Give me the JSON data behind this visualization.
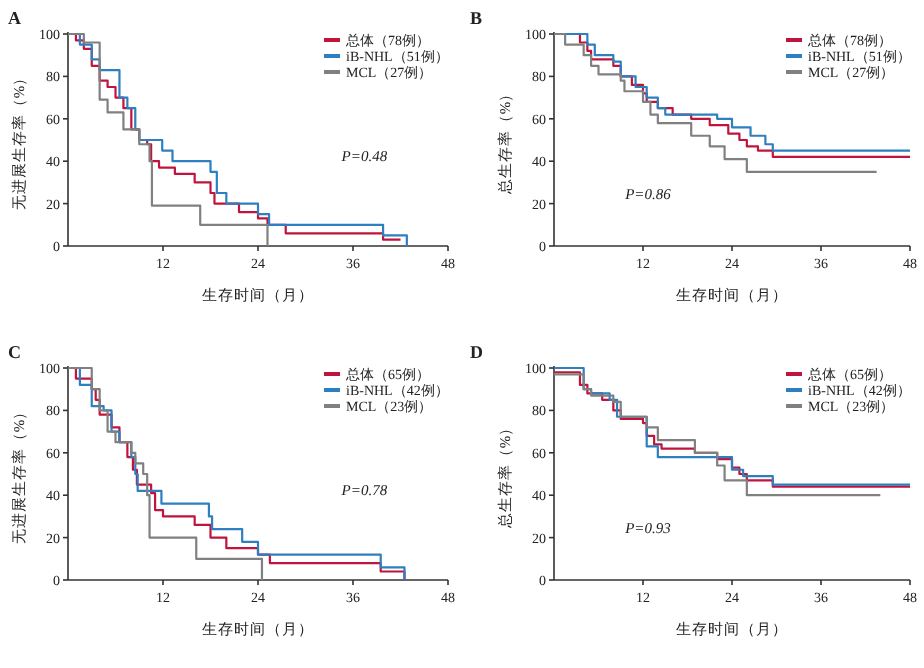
{
  "chart_data": [
    {
      "type": "step",
      "title": "A",
      "xlabel": "生存时间（月）",
      "ylabel": "无进展生存率（%）",
      "xlim": [
        0,
        48
      ],
      "xticks": [
        12,
        24,
        36,
        48
      ],
      "ylim": [
        0,
        100
      ],
      "yticks": [
        0,
        20,
        40,
        60,
        80,
        100
      ],
      "legend": "top right",
      "grid": false,
      "annotations": [
        "P=0.48"
      ],
      "series": [
        {
          "name": "总体（78例）",
          "color": "#c0143c",
          "x": [
            0,
            1,
            2,
            3,
            4,
            5,
            6,
            7,
            8,
            9,
            10,
            10.5,
            11.5,
            13.5,
            16,
            18,
            18.5,
            21.6,
            24,
            25.2,
            27.5,
            39.8,
            42
          ],
          "values": [
            100,
            97,
            93,
            85,
            78,
            75,
            70,
            65,
            55,
            50,
            48,
            40,
            37,
            34,
            30,
            25,
            20,
            16,
            13,
            10,
            6,
            3,
            3
          ]
        },
        {
          "name": "iB-NHL（51例）",
          "color": "#2e7fc0",
          "x": [
            0,
            1.5,
            3,
            4,
            6.5,
            7.5,
            8.5,
            9,
            11.9,
            13.2,
            18,
            18.8,
            20,
            24,
            25.4,
            39.8,
            42.8
          ],
          "values": [
            100,
            95,
            88,
            83,
            70,
            65,
            55,
            50,
            45,
            40,
            35,
            25,
            20,
            15,
            10,
            5,
            0
          ]
        },
        {
          "name": "MCL（27例）",
          "color": "#808080",
          "x": [
            0,
            2,
            4,
            5,
            7,
            9,
            10.3,
            10.6,
            16.7,
            25.2
          ],
          "values": [
            100,
            96,
            69,
            63,
            55,
            48,
            40,
            19,
            10,
            0
          ]
        }
      ]
    },
    {
      "type": "step",
      "title": "B",
      "xlabel": "生存时间（月）",
      "ylabel": "总生存率（%）",
      "xlim": [
        0,
        48
      ],
      "xticks": [
        12,
        24,
        36,
        48
      ],
      "ylim": [
        0,
        100
      ],
      "yticks": [
        0,
        20,
        40,
        60,
        80,
        100
      ],
      "legend": "top right",
      "grid": false,
      "annotations": [
        "P=0.86"
      ],
      "series": [
        {
          "name": "总体（78例）",
          "color": "#c0143c",
          "x": [
            0,
            3.5,
            4.5,
            5,
            8,
            9,
            10.5,
            12,
            12.5,
            14,
            16,
            18.5,
            21,
            23.5,
            25,
            26,
            27.5,
            29.5,
            48
          ],
          "values": [
            100,
            96,
            92,
            88,
            85,
            80,
            76,
            72,
            68,
            65,
            62,
            60,
            57,
            53,
            50,
            47,
            45,
            42,
            42
          ]
        },
        {
          "name": "iB-NHL（51例）",
          "color": "#2e7fc0",
          "x": [
            0,
            4.5,
            5.5,
            8,
            9,
            11,
            12.5,
            14,
            15,
            22,
            24,
            26.5,
            28.5,
            29.5,
            48
          ],
          "values": [
            100,
            95,
            90,
            87,
            80,
            75,
            70,
            65,
            62,
            60,
            56,
            52,
            48,
            45,
            45
          ]
        },
        {
          "name": "MCL（27例）",
          "color": "#808080",
          "x": [
            0,
            1.5,
            4,
            5,
            6,
            9,
            9.5,
            12,
            13,
            14,
            18.5,
            21,
            23,
            26,
            43.5
          ],
          "values": [
            100,
            95,
            90,
            85,
            81,
            78,
            73,
            68,
            62,
            58,
            52,
            47,
            41,
            35,
            35
          ]
        }
      ]
    },
    {
      "type": "step",
      "title": "C",
      "xlabel": "生存时间（月）",
      "ylabel": "无进展生存率（%）",
      "xlim": [
        0,
        48
      ],
      "xticks": [
        12,
        24,
        36,
        48
      ],
      "ylim": [
        0,
        100
      ],
      "yticks": [
        0,
        20,
        40,
        60,
        80,
        100
      ],
      "legend": "top right",
      "grid": false,
      "annotations": [
        "P=0.78"
      ],
      "series": [
        {
          "name": "总体（65例）",
          "color": "#c0143c",
          "x": [
            0,
            1,
            3,
            3.5,
            4,
            5.5,
            6.5,
            7.5,
            8.2,
            8.7,
            10.5,
            11,
            12,
            16,
            18,
            20,
            24,
            25.5,
            39.5,
            42.5
          ],
          "values": [
            100,
            95,
            90,
            85,
            78,
            72,
            65,
            58,
            52,
            45,
            41,
            33,
            30,
            26,
            20,
            15,
            12,
            8,
            4,
            0
          ]
        },
        {
          "name": "iB-NHL（42例）",
          "color": "#2e7fc0",
          "x": [
            0,
            1.5,
            3,
            4.5,
            5.5,
            6.5,
            8,
            8.5,
            8.8,
            11.8,
            17.8,
            18.2,
            22,
            24,
            39.5,
            42.5
          ],
          "values": [
            100,
            92,
            82,
            80,
            70,
            65,
            58,
            50,
            42,
            36,
            30,
            24,
            18,
            12,
            6,
            0
          ]
        },
        {
          "name": "MCL（23例）",
          "color": "#808080",
          "x": [
            0,
            3,
            4,
            5,
            6,
            8,
            8.5,
            9.5,
            10,
            10.3,
            16.2,
            24.5
          ],
          "values": [
            100,
            90,
            80,
            70,
            65,
            60,
            55,
            50,
            40,
            20,
            10,
            0
          ]
        }
      ]
    },
    {
      "type": "step",
      "title": "D",
      "xlabel": "生存时间（月）",
      "ylabel": "总生存率（%）",
      "xlim": [
        0,
        48
      ],
      "xticks": [
        12,
        24,
        36,
        48
      ],
      "ylim": [
        0,
        100
      ],
      "yticks": [
        0,
        20,
        40,
        60,
        80,
        100
      ],
      "legend": "top right",
      "grid": false,
      "annotations": [
        "P=0.93"
      ],
      "series": [
        {
          "name": "总体（65例）",
          "color": "#c0143c",
          "x": [
            0,
            3.5,
            4.5,
            6.5,
            8,
            9,
            12,
            12.5,
            13.5,
            14.5,
            19,
            22,
            24,
            25,
            26,
            29.5,
            48
          ],
          "values": [
            98,
            92,
            88,
            85,
            80,
            76,
            74,
            68,
            64,
            62,
            60,
            57,
            53,
            50,
            47,
            44,
            44
          ]
        },
        {
          "name": "iB-NHL（42例）",
          "color": "#2e7fc0",
          "x": [
            0,
            4,
            5,
            7.5,
            8.5,
            12.5,
            14,
            24,
            25.5,
            29.5,
            48
          ],
          "values": [
            100,
            90,
            88,
            85,
            77,
            63,
            58,
            52,
            49,
            45,
            45
          ]
        },
        {
          "name": "MCL（23例）",
          "color": "#808080",
          "x": [
            0,
            4,
            5,
            8,
            9,
            12.5,
            14,
            19,
            22,
            23,
            26,
            44
          ],
          "values": [
            97,
            90,
            87,
            84,
            77,
            72,
            66,
            60,
            54,
            47,
            40,
            40
          ]
        }
      ]
    }
  ]
}
